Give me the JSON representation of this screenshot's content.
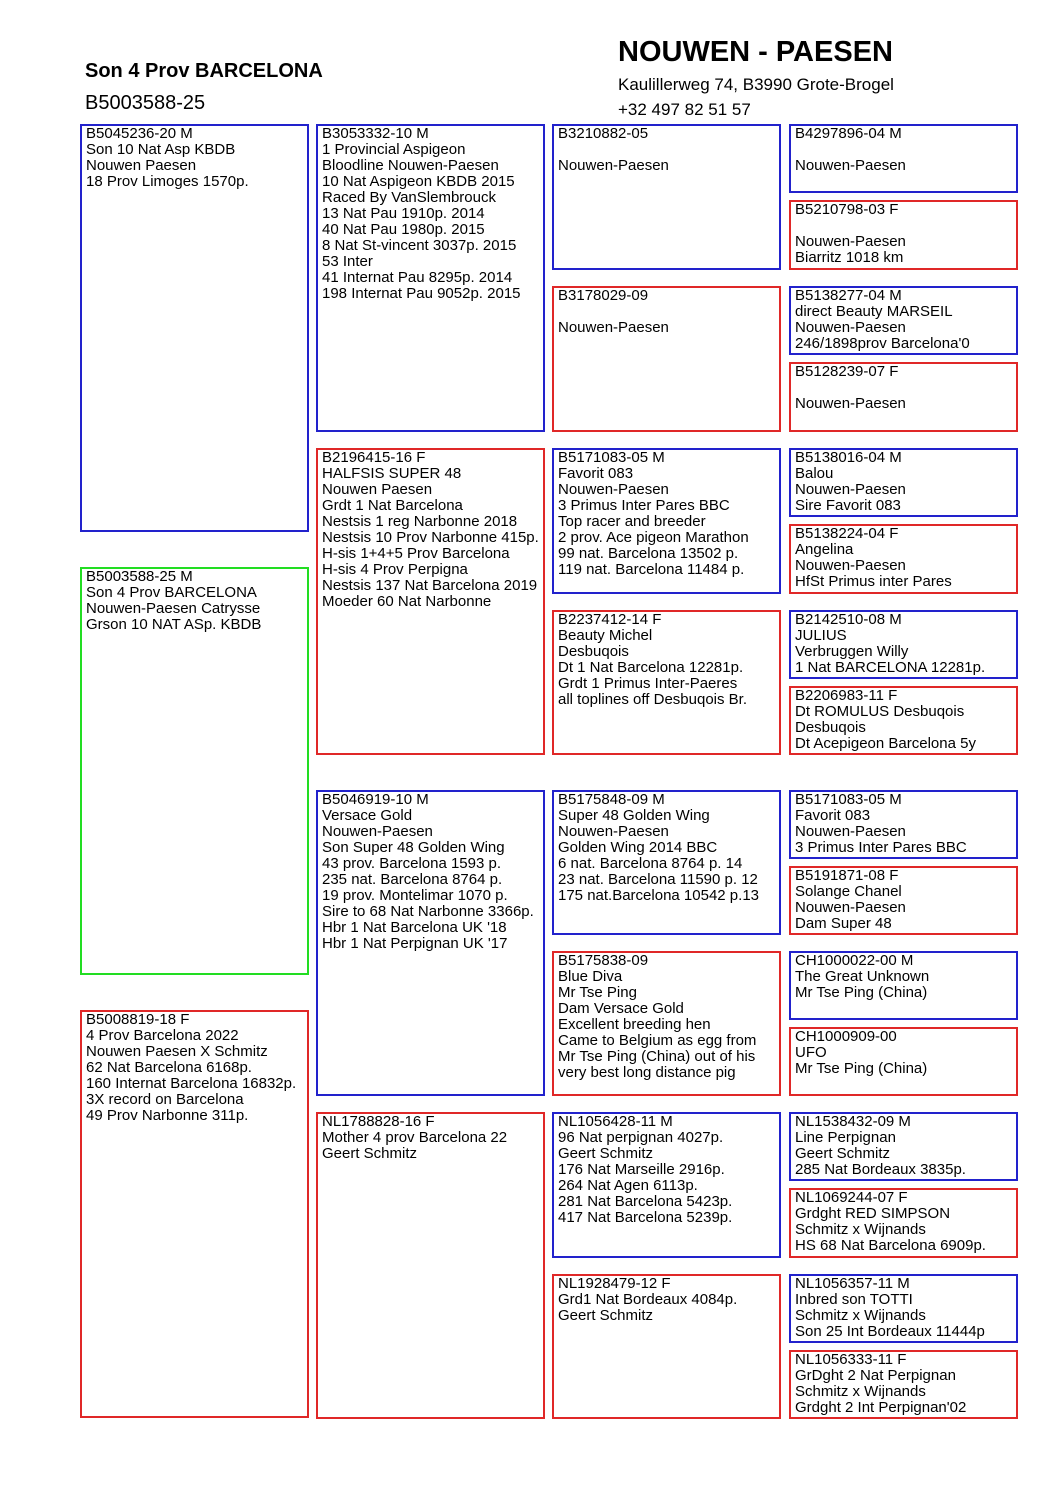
{
  "header": {
    "subject_title": "Son 4 Prov BARCELONA",
    "subject_ring": "B5003588-25",
    "breeder_name": "NOUWEN - PAESEN",
    "breeder_address": "Kaulillerweg 74, B3990 Grote-Brogel",
    "breeder_phone": "+32 497 82 51 57"
  },
  "colors": {
    "male": "#2222cc",
    "female": "#e02828",
    "subject": "#22dd22"
  },
  "pedigree": [
    {
      "slot": "sire",
      "sex": "male",
      "lines": [
        "B5045236-20  M",
        "Son 10 Nat Asp KBDB",
        "Nouwen Paesen",
        "18 Prov Limoges 1570p."
      ]
    },
    {
      "slot": "subject",
      "sex": "subject",
      "lines": [
        "B5003588-25  M",
        "Son 4 Prov BARCELONA",
        "Nouwen-Paesen Catrysse",
        "Grson 10 NAT ASp. KBDB"
      ]
    },
    {
      "slot": "dam",
      "sex": "female",
      "lines": [
        "B5008819-18  F",
        "4 Prov Barcelona 2022",
        "Nouwen Paesen X Schmitz",
        "62 Nat Barcelona 6168p.",
        "160 Internat Barcelona 16832p.",
        "3X record on Barcelona",
        "49 Prov Narbonne 311p."
      ]
    },
    {
      "slot": "g2-0",
      "sex": "male",
      "lines": [
        "B3053332-10  M",
        "1 Provincial Aspigeon",
        "Bloodline Nouwen-Paesen",
        "10 Nat Aspigeon KBDB 2015",
        "Raced By VanSlembrouck",
        "13 Nat Pau 1910p. 2014",
        "40 Nat Pau 1980p. 2015",
        "8 Nat St-vincent 3037p. 2015",
        "53 Inter",
        "41 Internat Pau 8295p. 2014",
        "198 Internat Pau 9052p. 2015"
      ]
    },
    {
      "slot": "g2-1",
      "sex": "female",
      "lines": [
        "B2196415-16  F",
        "HALFSIS SUPER 48",
        "Nouwen Paesen",
        "Grdt 1 Nat Barcelona",
        "Nestsis 1 reg Narbonne 2018",
        "Nestsis 10 Prov Narbonne 415p.",
        "H-sis 1+4+5 Prov Barcelona",
        "H-sis 4 Prov Perpigna",
        "Nestsis 137 Nat Barcelona 2019",
        "Moeder 60 Nat Narbonne"
      ]
    },
    {
      "slot": "g2-2",
      "sex": "male",
      "lines": [
        "B5046919-10  M",
        "Versace Gold",
        "Nouwen-Paesen",
        "Son Super 48 Golden Wing",
        "43 prov. Barcelona 1593 p.",
        "235 nat. Barcelona 8764 p.",
        "19 prov. Montelimar 1070 p.",
        "Sire to 68 Nat Narbonne 3366p.",
        "Hbr 1 Nat Barcelona UK '18",
        "Hbr 1 Nat Perpignan UK '17"
      ]
    },
    {
      "slot": "g2-3",
      "sex": "female",
      "lines": [
        "NL1788828-16  F",
        "Mother 4 prov Barcelona 22",
        "Geert Schmitz"
      ]
    },
    {
      "slot": "g3-0",
      "sex": "male",
      "lines": [
        "B3210882-05",
        "",
        "Nouwen-Paesen"
      ]
    },
    {
      "slot": "g3-1",
      "sex": "female",
      "lines": [
        "B3178029-09",
        "",
        "Nouwen-Paesen"
      ]
    },
    {
      "slot": "g3-2",
      "sex": "male",
      "lines": [
        "B5171083-05  M",
        "Favorit 083",
        "Nouwen-Paesen",
        "3 Primus Inter Pares BBC",
        "Top racer and breeder",
        "2 prov. Ace pigeon Marathon",
        "99 nat. Barcelona 13502 p.",
        "119 nat. Barcelona 11484 p."
      ]
    },
    {
      "slot": "g3-3",
      "sex": "female",
      "lines": [
        "B2237412-14  F",
        "Beauty Michel",
        "Desbuqois",
        "Dt 1 Nat Barcelona 12281p.",
        "Grdt 1 Primus Inter-Paeres",
        "all toplines off Desbuqois Br."
      ]
    },
    {
      "slot": "g3-4",
      "sex": "male",
      "lines": [
        "B5175848-09  M",
        "Super 48 Golden Wing",
        "Nouwen-Paesen",
        "Golden Wing 2014 BBC",
        "6 nat. Barcelona 8764 p. 14",
        "23 nat. Barcelona 11590 p. 12",
        "175 nat.Barcelona 10542 p.13"
      ]
    },
    {
      "slot": "g3-5",
      "sex": "female",
      "lines": [
        "B5175838-09",
        "Blue Diva",
        "Mr Tse Ping",
        "Dam Versace Gold",
        "Excellent breeding hen",
        "Came to Belgium as egg from",
        "Mr Tse Ping (China) out of his",
        "very best long distance pig"
      ]
    },
    {
      "slot": "g3-6",
      "sex": "male",
      "lines": [
        "NL1056428-11  M",
        "96 Nat perpignan 4027p.",
        "Geert Schmitz",
        "176 Nat Marseille 2916p.",
        "264 Nat Agen 6113p.",
        "281 Nat Barcelona 5423p.",
        "417 Nat Barcelona 5239p."
      ]
    },
    {
      "slot": "g3-7",
      "sex": "female",
      "lines": [
        "NL1928479-12  F",
        "Grd1 Nat Bordeaux 4084p.",
        "Geert Schmitz"
      ]
    },
    {
      "slot": "g4-0",
      "sex": "male",
      "lines": [
        "B4297896-04  M",
        "",
        "Nouwen-Paesen"
      ]
    },
    {
      "slot": "g4-1",
      "sex": "female",
      "lines": [
        "B5210798-03  F",
        "",
        "Nouwen-Paesen",
        "Biarritz 1018 km"
      ]
    },
    {
      "slot": "g4-2",
      "sex": "male",
      "lines": [
        "B5138277-04  M",
        "direct Beauty MARSEIL",
        "Nouwen-Paesen",
        "246/1898prov Barcelona'0"
      ]
    },
    {
      "slot": "g4-3",
      "sex": "female",
      "lines": [
        "B5128239-07  F",
        "",
        "Nouwen-Paesen"
      ]
    },
    {
      "slot": "g4-4",
      "sex": "male",
      "lines": [
        "B5138016-04  M",
        "Balou",
        "Nouwen-Paesen",
        "Sire Favorit 083"
      ]
    },
    {
      "slot": "g4-5",
      "sex": "female",
      "lines": [
        "B5138224-04  F",
        "Angelina",
        "Nouwen-Paesen",
        "HfSt Primus inter Pares"
      ]
    },
    {
      "slot": "g4-6",
      "sex": "male",
      "lines": [
        "B2142510-08  M",
        "JULIUS",
        "Verbruggen Willy",
        "1 Nat BARCELONA 12281p."
      ]
    },
    {
      "slot": "g4-7",
      "sex": "female",
      "lines": [
        "B2206983-11  F",
        "Dt ROMULUS Desbuqois",
        "Desbuqois",
        "Dt Acepigeon Barcelona 5y"
      ]
    },
    {
      "slot": "g4-8",
      "sex": "male",
      "lines": [
        "B5171083-05  M",
        "Favorit 083",
        "Nouwen-Paesen",
        "3 Primus Inter Pares BBC"
      ]
    },
    {
      "slot": "g4-9",
      "sex": "female",
      "lines": [
        "B5191871-08  F",
        "Solange Chanel",
        "Nouwen-Paesen",
        "Dam Super 48"
      ]
    },
    {
      "slot": "g4-10",
      "sex": "male",
      "lines": [
        "CH1000022-00  M",
        "The Great Unknown",
        "Mr Tse Ping (China)"
      ]
    },
    {
      "slot": "g4-11",
      "sex": "female",
      "lines": [
        "CH1000909-00",
        "UFO",
        "Mr Tse Ping (China)"
      ]
    },
    {
      "slot": "g4-12",
      "sex": "male",
      "lines": [
        "NL1538432-09  M",
        "Line Perpignan",
        "Geert Schmitz",
        "285 Nat Bordeaux 3835p."
      ]
    },
    {
      "slot": "g4-13",
      "sex": "female",
      "lines": [
        "NL1069244-07  F",
        "Grdght RED SIMPSON",
        "Schmitz x Wijnands",
        "HS 68 Nat Barcelona 6909p."
      ]
    },
    {
      "slot": "g4-14",
      "sex": "male",
      "lines": [
        "NL1056357-11  M",
        "Inbred son TOTTI",
        "Schmitz x Wijnands",
        "Son 25 Int Bordeaux 11444p"
      ]
    },
    {
      "slot": "g4-15",
      "sex": "female",
      "lines": [
        "NL1056333-11  F",
        "GrDght 2 Nat Perpignan",
        "Schmitz x Wijnands",
        "Grdght 2 Int Perpignan'02"
      ]
    }
  ]
}
